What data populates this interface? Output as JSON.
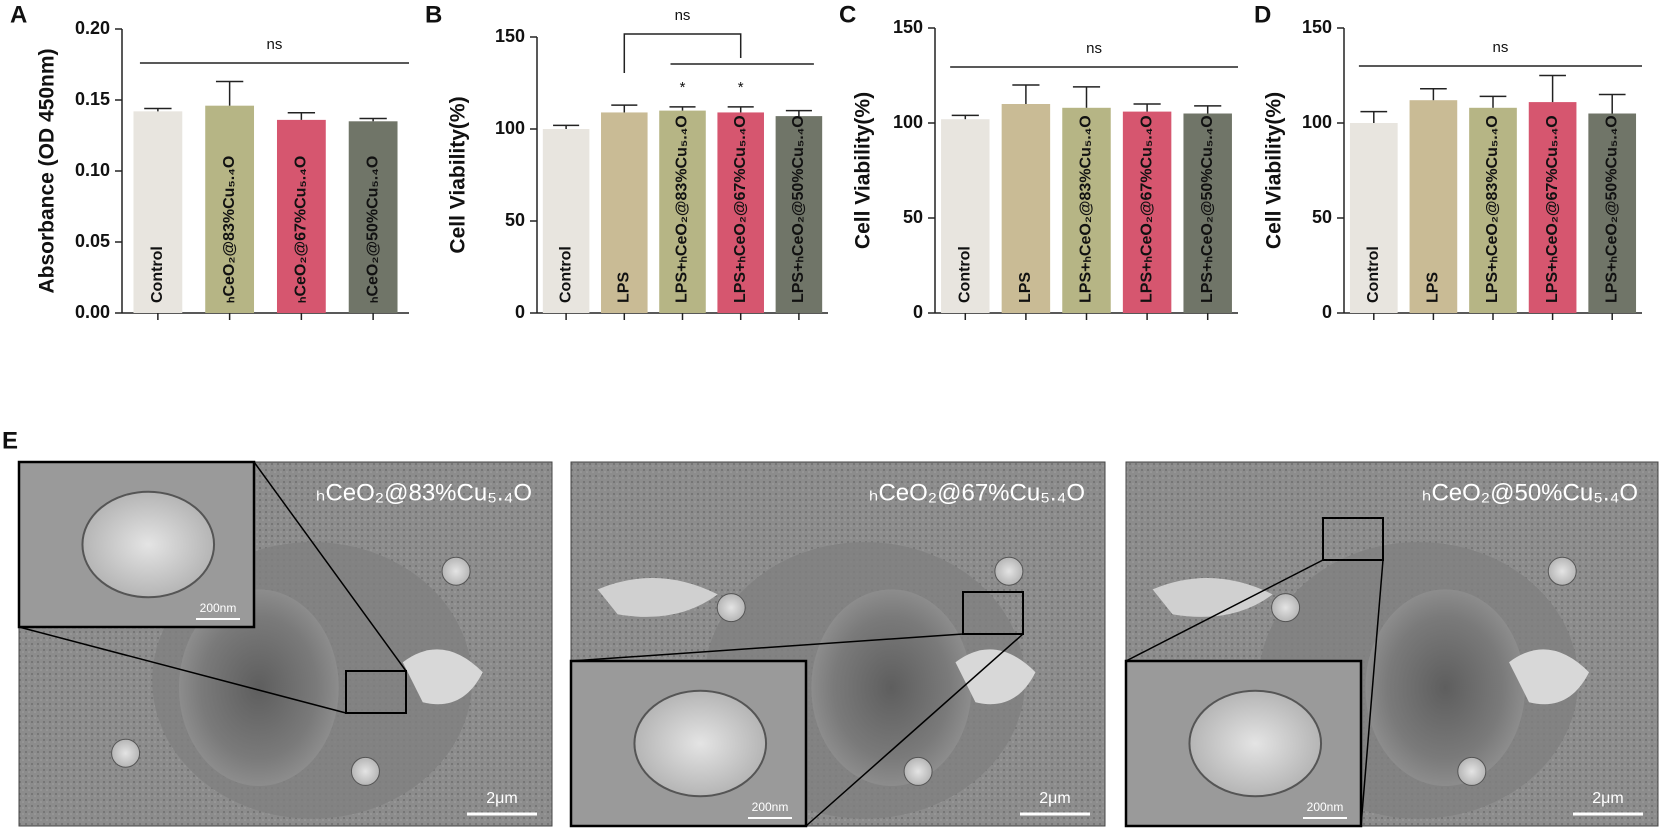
{
  "chart_data": [
    {
      "type": "bar",
      "panel": "A",
      "y_label": "Absorbance (OD 450nm)",
      "categories": [
        "Control",
        "ₕCeO₂@83%Cu₅.₄O",
        "ₕCeO₂@67%Cu₅.₄O",
        "ₕCeO₂@50%Cu₅.₄O"
      ],
      "values": [
        0.142,
        0.146,
        0.136,
        0.135
      ],
      "errors": [
        0.002,
        0.017,
        0.005,
        0.002
      ],
      "colors": [
        "#e8e5df",
        "#b6b585",
        "#d6566f",
        "#707568"
      ],
      "ylim": [
        0,
        0.2
      ],
      "yticks": [
        {
          "value": 0,
          "label": "0.00"
        },
        {
          "value": 0.05,
          "label": "0.05"
        },
        {
          "value": 0.1,
          "label": "0.10"
        },
        {
          "value": 0.15,
          "label": "0.15"
        },
        {
          "value": 0.2,
          "label": "0.20"
        }
      ],
      "annotations": [
        {
          "text": "ns"
        }
      ]
    },
    {
      "type": "bar",
      "panel": "B",
      "y_label": "Cell Viability(%)",
      "categories": [
        "Control",
        "LPS",
        "LPS+ₕCeO₂@83%Cu₅.₄O",
        "LPS+ₕCeO₂@67%Cu₅.₄O",
        "LPS+ₕCeO₂@50%Cu₅.₄O"
      ],
      "values": [
        100,
        109,
        110,
        109,
        107
      ],
      "errors": [
        2,
        4,
        2,
        3,
        3
      ],
      "colors": [
        "#e8e5df",
        "#c9bb95",
        "#b6b585",
        "#d6566f",
        "#707568"
      ],
      "ylim": [
        0,
        150
      ],
      "yticks": [
        0,
        50,
        100,
        150
      ],
      "annotations": [
        {
          "text": "ns"
        },
        {
          "text": "*"
        },
        {
          "text": "*"
        }
      ]
    },
    {
      "type": "bar",
      "panel": "C",
      "y_label": "Cell Viability(%)",
      "categories": [
        "Control",
        "LPS",
        "LPS+ₕCeO₂@83%Cu₅.₄O",
        "LPS+ₕCeO₂@67%Cu₅.₄O",
        "LPS+ₕCeO₂@50%Cu₅.₄O"
      ],
      "values": [
        102,
        110,
        108,
        106,
        105
      ],
      "errors": [
        2,
        10,
        11,
        4,
        4
      ],
      "colors": [
        "#e8e5df",
        "#c9bb95",
        "#b6b585",
        "#d6566f",
        "#707568"
      ],
      "ylim": [
        0,
        150
      ],
      "yticks": [
        0,
        50,
        100,
        150
      ],
      "annotations": [
        {
          "text": "ns"
        }
      ]
    },
    {
      "type": "bar",
      "panel": "D",
      "y_label": "Cell Viability(%)",
      "categories": [
        "Control",
        "LPS",
        "LPS+ₕCeO₂@83%Cu₅.₄O",
        "LPS+ₕCeO₂@67%Cu₅.₄O",
        "LPS+ₕCeO₂@50%Cu₅.₄O"
      ],
      "values": [
        100,
        112,
        108,
        111,
        105
      ],
      "errors": [
        6,
        6,
        6,
        14,
        10
      ],
      "colors": [
        "#e8e5df",
        "#c9bb95",
        "#b6b585",
        "#d6566f",
        "#707568"
      ],
      "ylim": [
        0,
        150
      ],
      "yticks": [
        0,
        50,
        100,
        150
      ],
      "annotations": [
        {
          "text": "ns"
        }
      ]
    }
  ],
  "panel_e": {
    "panel": "E",
    "images": [
      {
        "title": "ₕCeO₂@83%Cu₅.₄O",
        "scale_bar": "2μm",
        "inset_scale_bar": "200nm"
      },
      {
        "title": "ₕCeO₂@67%Cu₅.₄O",
        "scale_bar": "2μm",
        "inset_scale_bar": "200nm"
      },
      {
        "title": "ₕCeO₂@50%Cu₅.₄O",
        "scale_bar": "2μm",
        "inset_scale_bar": "200nm"
      }
    ]
  }
}
